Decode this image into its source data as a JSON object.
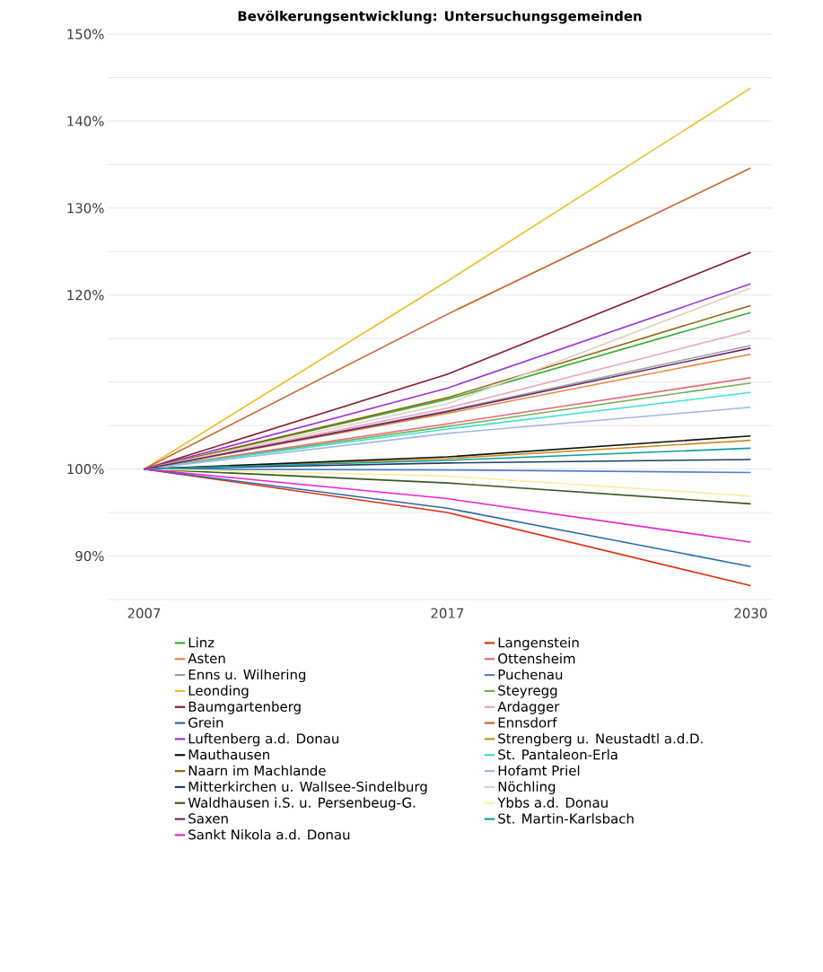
{
  "chart_data": {
    "type": "line",
    "title": "**Bevölkerungsentwicklung: Untersuchungsgemeinden**",
    "categories": [
      "2007",
      "2017",
      "2030"
    ],
    "ylim": [
      85,
      150
    ],
    "yticks": [
      {
        "value": 85,
        "label": null
      },
      {
        "value": 90,
        "label": "90%"
      },
      {
        "value": 95,
        "label": null
      },
      {
        "value": 100,
        "label": "100%"
      },
      {
        "value": 105,
        "label": null
      },
      {
        "value": 110,
        "label": null
      },
      {
        "value": 115,
        "label": null
      },
      {
        "value": 120,
        "label": "120%"
      },
      {
        "value": 125,
        "label": null
      },
      {
        "value": 130,
        "label": "130%"
      },
      {
        "value": 135,
        "label": null
      },
      {
        "value": 140,
        "label": "140%"
      },
      {
        "value": 145,
        "label": null
      },
      {
        "value": 150,
        "label": "150%"
      }
    ],
    "grid": "y",
    "legend": "bottom",
    "series": [
      {
        "name": "Linz",
        "color": "#33b033",
        "values": [
          100,
          108.0,
          118.0
        ]
      },
      {
        "name": "Asten",
        "color": "#e8883a",
        "values": [
          100,
          106.4,
          113.2
        ]
      },
      {
        "name": "Enns u. Wilhering",
        "color": "#a0a0a0",
        "values": [
          100,
          106.7,
          114.2
        ]
      },
      {
        "name": "Leonding",
        "color": "#f0c020",
        "values": [
          100,
          121.6,
          143.8
        ]
      },
      {
        "name": "Baumgartenberg",
        "color": "#8b1a2a",
        "values": [
          100,
          110.9,
          124.9
        ]
      },
      {
        "name": "Grein",
        "color": "#2a6aa8",
        "values": [
          100,
          95.5,
          88.8
        ]
      },
      {
        "name": "Luftenberg a.d. Donau",
        "color": "#9b30e0",
        "values": [
          100,
          109.3,
          121.3
        ]
      },
      {
        "name": "Mauthausen",
        "color": "#101010",
        "values": [
          100,
          101.4,
          103.8
        ]
      },
      {
        "name": "Naarn im Machlande",
        "color": "#8b6a10",
        "values": [
          100,
          108.2,
          118.8
        ]
      },
      {
        "name": "Mitterkirchen u. Wallsee-Sindelburg",
        "color": "#1f3f6a",
        "values": [
          100,
          100.7,
          101.1
        ]
      },
      {
        "name": "Waldhausen i.S. u. Persenbeug-G.",
        "color": "#3a5a20",
        "values": [
          100,
          98.4,
          96.0
        ]
      },
      {
        "name": "Saxen",
        "color": "#6a2a6a",
        "values": [
          100,
          106.6,
          113.9
        ]
      },
      {
        "name": "Sankt Nikola a.d. Donau",
        "color": "#f020d0",
        "values": [
          100,
          96.6,
          91.6
        ]
      },
      {
        "name": "Langenstein",
        "color": "#e03010",
        "values": [
          100,
          95.0,
          86.6
        ]
      },
      {
        "name": "Ottensheim",
        "color": "#e86a7a",
        "values": [
          100,
          105.2,
          110.5
        ]
      },
      {
        "name": "Puchenau",
        "color": "#5080d0",
        "values": [
          100,
          99.9,
          99.6
        ]
      },
      {
        "name": "Steyregg",
        "color": "#70b050",
        "values": [
          100,
          104.9,
          109.9
        ]
      },
      {
        "name": "Ardagger",
        "color": "#f0a0c0",
        "values": [
          100,
          107.0,
          115.9
        ]
      },
      {
        "name": "Ennsdorf",
        "color": "#d2602a",
        "values": [
          100,
          117.8,
          134.6
        ]
      },
      {
        "name": "Strengberg u. Neustadtl a.d.D.",
        "color": "#c89020",
        "values": [
          100,
          101.2,
          103.3
        ]
      },
      {
        "name": "St. Pantaleon-Erla",
        "color": "#40e0d8",
        "values": [
          100,
          104.6,
          108.8
        ]
      },
      {
        "name": "Hofamt Priel",
        "color": "#a0b8e0",
        "values": [
          100,
          104.1,
          107.1
        ]
      },
      {
        "name": "Nöchling",
        "color": "#e0d0c0",
        "values": [
          100,
          107.5,
          120.8
        ]
      },
      {
        "name": "Ybbs a.d. Donau",
        "color": "#f8f0a0",
        "values": [
          100,
          99.2,
          96.9
        ]
      },
      {
        "name": "St. Martin-Karlsbach",
        "color": "#10a0a0",
        "values": [
          100,
          101.0,
          102.4
        ]
      }
    ]
  }
}
